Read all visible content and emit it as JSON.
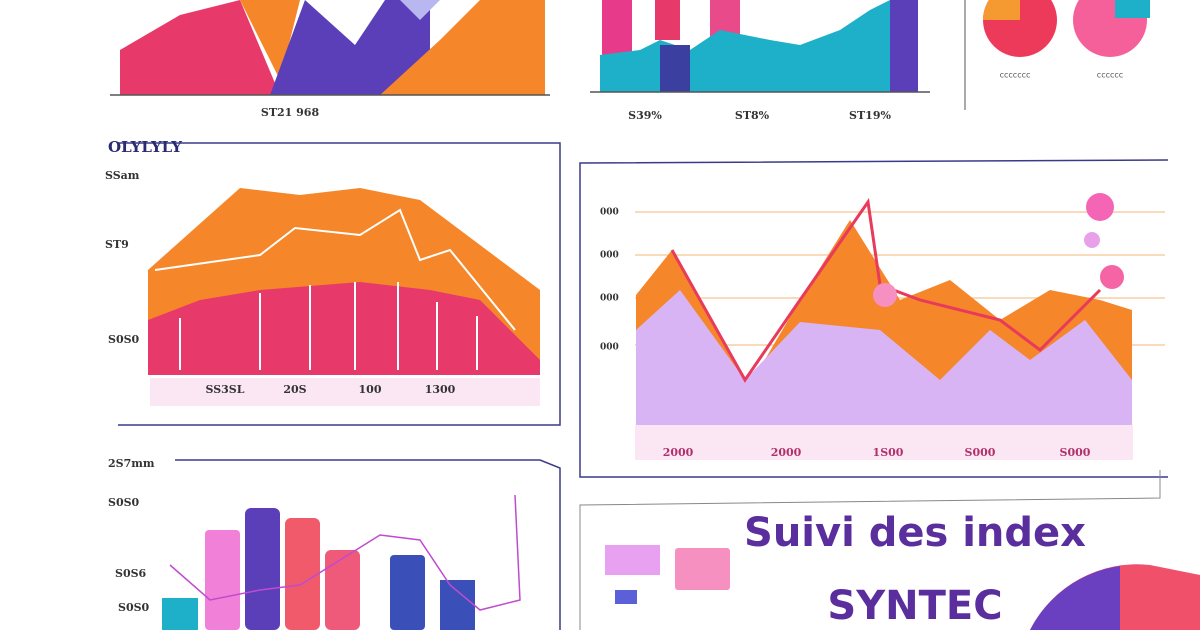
{
  "top_left": {
    "label": "ST21 968"
  },
  "top_middle": {
    "labels": [
      "S39%",
      "ST8%",
      "ST19%"
    ]
  },
  "top_right": {
    "legends": [
      "ccccccc",
      "cccccc"
    ]
  },
  "mid_left": {
    "title": "OLYLYLY",
    "axis_labels": [
      "SSam",
      "ST9",
      "S0S0"
    ],
    "x_labels": [
      "SS3SL",
      "20S",
      "100",
      "1300"
    ]
  },
  "mid_right": {
    "axis_labels": [
      "000",
      "000",
      "000",
      "000"
    ],
    "x_labels": [
      "2000",
      "2000",
      "1S00",
      "S000",
      "S000"
    ]
  },
  "bottom_left": {
    "axis_labels": [
      "2S7mm",
      "S0S0",
      "S0S6",
      "S0S0"
    ]
  },
  "header": {
    "title_line1": "Suivi des index",
    "title_line2": "SYNTEC"
  }
}
